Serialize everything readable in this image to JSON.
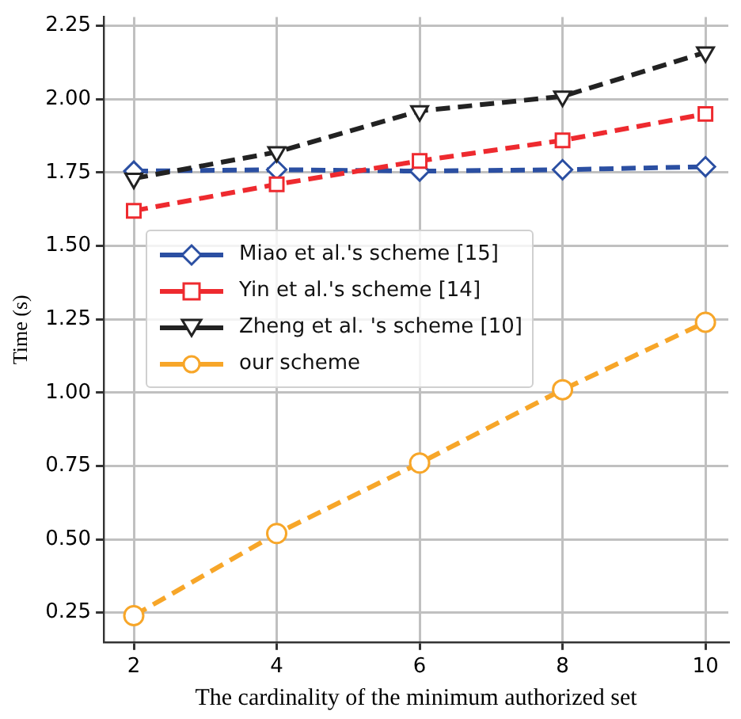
{
  "chart_data": {
    "type": "line",
    "xlabel": "The cardinality of the minimum authorized set",
    "ylabel": "Time (s)",
    "x": [
      2,
      4,
      6,
      8,
      10
    ],
    "xlim": [
      1.58,
      10.32
    ],
    "xticks": [
      2,
      4,
      6,
      8,
      10
    ],
    "ylim": [
      0.15,
      2.28
    ],
    "yticks": [
      {
        "value": 0.25,
        "label": "0.25"
      },
      {
        "value": 0.5,
        "label": "0.50"
      },
      {
        "value": 0.75,
        "label": "0.75"
      },
      {
        "value": 1,
        "label": "1.00"
      },
      {
        "value": 1.25,
        "label": "1.25"
      },
      {
        "value": 1.5,
        "label": "1.50"
      },
      {
        "value": 1.75,
        "label": "1.75"
      },
      {
        "value": 2,
        "label": "2.00"
      },
      {
        "value": 2.25,
        "label": "2.25"
      }
    ],
    "grid": true,
    "legend": "left",
    "line_style": "dashed",
    "series": [
      {
        "name": "Miao et al.'s scheme [15]",
        "color": "#2b4fa2",
        "marker": "diamond",
        "values": [
          1.755,
          1.76,
          1.755,
          1.76,
          1.77
        ]
      },
      {
        "name": "Yin et al.'s scheme [14]",
        "color": "#ee2a2f",
        "marker": "square",
        "values": [
          1.62,
          1.71,
          1.79,
          1.86,
          1.95
        ]
      },
      {
        "name": "Zheng et al. 's scheme [10]",
        "color": "#222222",
        "marker": "triangle",
        "values": [
          1.73,
          1.82,
          1.96,
          2.01,
          2.16
        ]
      },
      {
        "name": "our scheme",
        "color": "#f7a629",
        "marker": "circle",
        "values": [
          0.24,
          0.52,
          0.76,
          1.01,
          1.24
        ]
      }
    ]
  }
}
